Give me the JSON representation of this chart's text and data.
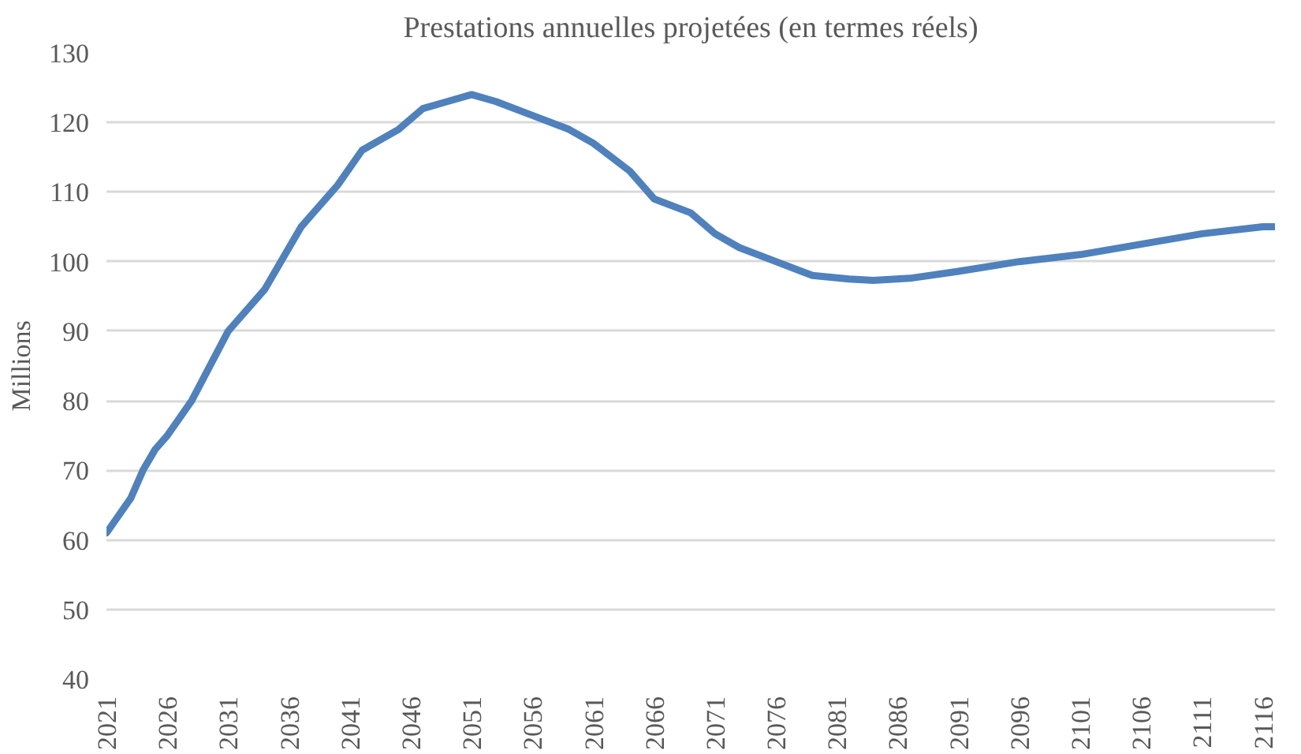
{
  "chart_data": {
    "type": "line",
    "title": "Prestations annuelles projetées (en termes réels)",
    "ylabel": "Millions",
    "x": [
      2021,
      2023,
      2024,
      2025,
      2026,
      2028,
      2031,
      2034,
      2036,
      2037,
      2038,
      2040,
      2042,
      2044,
      2045,
      2047,
      2049,
      2051,
      2053,
      2056,
      2059,
      2061,
      2064,
      2066,
      2069,
      2071,
      2073,
      2076,
      2079,
      2082,
      2084,
      2087,
      2091,
      2096,
      2101,
      2106,
      2111,
      2116,
      2117
    ],
    "series": [
      {
        "color": "#4f81bd",
        "values": [
          61,
          66,
          70,
          73,
          75,
          80,
          90,
          96,
          102,
          105,
          107,
          111,
          116,
          118,
          119,
          122,
          123,
          124,
          123,
          121,
          119,
          117,
          113,
          109,
          107,
          104,
          102,
          100,
          98,
          97.5,
          97.3,
          97.6,
          98.6,
          100,
          101,
          102.5,
          104,
          105,
          105
        ]
      }
    ],
    "xlim": [
      2021,
      2117
    ],
    "xticks": [
      2021,
      2026,
      2031,
      2036,
      2041,
      2046,
      2051,
      2056,
      2061,
      2066,
      2071,
      2076,
      2081,
      2086,
      2091,
      2096,
      2101,
      2106,
      2111,
      2116
    ],
    "ylim": [
      40,
      130
    ],
    "yticks": [
      40,
      50,
      60,
      70,
      80,
      90,
      100,
      110,
      120,
      130
    ],
    "grid": "y",
    "marker": "none",
    "line_style": "solid"
  }
}
